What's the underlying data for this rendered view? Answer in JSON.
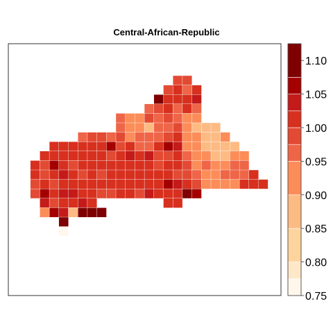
{
  "chart_data": {
    "type": "heatmap",
    "title": "Central-African-Republic",
    "legend": {
      "position": "right",
      "ticks": [
        "0.75",
        "0.80",
        "0.85",
        "0.90",
        "0.95",
        "1.00",
        "1.05",
        "1.10"
      ],
      "breaks": [
        0.75,
        0.775,
        0.8,
        0.85,
        0.9,
        0.95,
        0.975,
        1.0,
        1.025,
        1.05,
        1.075,
        1.125
      ],
      "range": [
        0.75,
        1.125
      ],
      "colors": [
        "#fff7ec",
        "#fee8c8",
        "#fdd49e",
        "#fdbb84",
        "#fc8d59",
        "#ef6548",
        "#e34a33",
        "#d7301f",
        "#c51a1a",
        "#a50000",
        "#7f0000"
      ]
    },
    "grid_rows": [
      {
        "row": 0,
        "cells": [
          [
            16,
            0.98
          ],
          [
            17,
            0.98
          ]
        ]
      },
      {
        "row": 1,
        "cells": [
          [
            15,
            0.99
          ],
          [
            16,
            1.02
          ],
          [
            17,
            0.96
          ],
          [
            18,
            1.01
          ]
        ]
      },
      {
        "row": 2,
        "cells": [
          [
            14,
            1.09
          ],
          [
            15,
            1.0
          ],
          [
            16,
            1.02
          ],
          [
            17,
            1.01
          ],
          [
            18,
            1.03
          ]
        ]
      },
      {
        "row": 3,
        "cells": [
          [
            13,
            0.97
          ],
          [
            14,
            0.99
          ],
          [
            15,
            1.0
          ],
          [
            16,
            0.97
          ],
          [
            17,
            1.01
          ],
          [
            18,
            0.97
          ]
        ]
      },
      {
        "row": 4,
        "cells": [
          [
            10,
            0.96
          ],
          [
            11,
            0.93
          ],
          [
            12,
            0.94
          ],
          [
            13,
            0.98
          ],
          [
            14,
            0.97
          ],
          [
            15,
            0.98
          ],
          [
            16,
            0.96
          ],
          [
            17,
            0.91
          ],
          [
            18,
            0.91
          ]
        ]
      },
      {
        "row": 5,
        "cells": [
          [
            10,
            0.97
          ],
          [
            11,
            0.93
          ],
          [
            12,
            0.92
          ],
          [
            13,
            0.89
          ],
          [
            14,
            0.95
          ],
          [
            15,
            0.97
          ],
          [
            16,
            0.98
          ],
          [
            17,
            0.9
          ],
          [
            18,
            0.89
          ],
          [
            19,
            0.88
          ],
          [
            20,
            0.89
          ]
        ]
      },
      {
        "row": 6,
        "cells": [
          [
            6,
            0.96
          ],
          [
            7,
            0.98
          ],
          [
            8,
            0.99
          ],
          [
            9,
            0.97
          ],
          [
            10,
            0.99
          ],
          [
            11,
            0.94
          ],
          [
            12,
            0.95
          ],
          [
            13,
            0.97
          ],
          [
            14,
            0.96
          ],
          [
            15,
            0.98
          ],
          [
            16,
            1.0
          ],
          [
            17,
            0.92
          ],
          [
            18,
            0.9
          ],
          [
            19,
            0.88
          ],
          [
            20,
            0.88
          ],
          [
            21,
            0.91
          ]
        ]
      },
      {
        "row": 7,
        "cells": [
          [
            3,
            1.0
          ],
          [
            4,
            1.0
          ],
          [
            5,
            1.0
          ],
          [
            6,
            1.01
          ],
          [
            7,
            1.0
          ],
          [
            8,
            1.0
          ],
          [
            9,
            1.07
          ],
          [
            10,
            0.99
          ],
          [
            11,
            1.01
          ],
          [
            12,
            0.96
          ],
          [
            13,
            0.97
          ],
          [
            14,
            1.0
          ],
          [
            15,
            1.05
          ],
          [
            16,
            1.04
          ],
          [
            17,
            0.94
          ],
          [
            18,
            0.92
          ],
          [
            19,
            0.89
          ],
          [
            20,
            0.89
          ],
          [
            21,
            0.88
          ],
          [
            22,
            0.88
          ]
        ]
      },
      {
        "row": 8,
        "cells": [
          [
            2,
            1.0
          ],
          [
            3,
            1.02
          ],
          [
            4,
            1.0
          ],
          [
            5,
            1.0
          ],
          [
            6,
            1.02
          ],
          [
            7,
            1.0
          ],
          [
            8,
            1.0
          ],
          [
            9,
            0.98
          ],
          [
            10,
            1.0
          ],
          [
            11,
            1.04
          ],
          [
            12,
            1.0
          ],
          [
            13,
            1.04
          ],
          [
            14,
            0.99
          ],
          [
            15,
            0.98
          ],
          [
            16,
            1.02
          ],
          [
            17,
            0.95
          ],
          [
            18,
            0.93
          ],
          [
            19,
            0.91
          ],
          [
            20,
            0.87
          ],
          [
            21,
            0.89
          ],
          [
            22,
            0.9
          ],
          [
            23,
            0.94
          ]
        ]
      },
      {
        "row": 9,
        "cells": [
          [
            1,
            1.01
          ],
          [
            2,
            0.99
          ],
          [
            3,
            1.06
          ],
          [
            4,
            1.0
          ],
          [
            5,
            0.99
          ],
          [
            6,
            1.0
          ],
          [
            7,
            1.0
          ],
          [
            8,
            1.0
          ],
          [
            9,
            1.0
          ],
          [
            10,
            1.0
          ],
          [
            11,
            1.0
          ],
          [
            12,
            1.0
          ],
          [
            13,
            1.02
          ],
          [
            14,
            0.98
          ],
          [
            15,
            1.0
          ],
          [
            16,
            1.0
          ],
          [
            17,
            0.99
          ],
          [
            18,
            0.94
          ],
          [
            19,
            0.95
          ],
          [
            20,
            0.93
          ],
          [
            21,
            0.93
          ],
          [
            22,
            0.96
          ],
          [
            23,
            0.95
          ]
        ]
      },
      {
        "row": 10,
        "cells": [
          [
            1,
            1.0
          ],
          [
            2,
            0.98
          ],
          [
            3,
            1.0
          ],
          [
            4,
            1.03
          ],
          [
            5,
            1.0
          ],
          [
            6,
            0.99
          ],
          [
            7,
            1.0
          ],
          [
            8,
            0.99
          ],
          [
            9,
            1.0
          ],
          [
            10,
            1.0
          ],
          [
            11,
            1.0
          ],
          [
            12,
            1.0
          ],
          [
            13,
            1.0
          ],
          [
            14,
            1.0
          ],
          [
            15,
            1.0
          ],
          [
            16,
            0.99
          ],
          [
            17,
            0.98
          ],
          [
            18,
            0.96
          ],
          [
            19,
            0.93
          ],
          [
            20,
            0.93
          ],
          [
            21,
            0.96
          ],
          [
            22,
            0.95
          ],
          [
            23,
            0.97
          ],
          [
            24,
            1.02
          ]
        ]
      },
      {
        "row": 11,
        "cells": [
          [
            1,
            0.99
          ],
          [
            2,
            1.0
          ],
          [
            3,
            0.99
          ],
          [
            4,
            1.0
          ],
          [
            5,
            1.0
          ],
          [
            6,
            1.0
          ],
          [
            7,
            1.0
          ],
          [
            8,
            1.0
          ],
          [
            9,
            1.0
          ],
          [
            10,
            1.0
          ],
          [
            11,
            1.0
          ],
          [
            12,
            1.0
          ],
          [
            13,
            1.0
          ],
          [
            14,
            1.01
          ],
          [
            15,
            1.05
          ],
          [
            16,
            1.03
          ],
          [
            17,
            1.01
          ],
          [
            18,
            0.99
          ],
          [
            19,
            0.94
          ],
          [
            20,
            0.94
          ],
          [
            21,
            0.94
          ],
          [
            22,
            0.94
          ],
          [
            23,
            1.02
          ],
          [
            24,
            1.0
          ],
          [
            25,
            1.01
          ]
        ]
      },
      {
        "row": 12,
        "cells": [
          [
            1,
            0.99
          ],
          [
            2,
            1.05
          ],
          [
            3,
            1.0
          ],
          [
            4,
            1.03
          ],
          [
            5,
            1.04
          ],
          [
            6,
            1.0
          ],
          [
            7,
            1.0
          ],
          [
            8,
            0.99
          ],
          [
            9,
            0.99
          ],
          [
            10,
            1.0
          ],
          [
            11,
            1.0
          ],
          [
            12,
            0.99
          ],
          [
            13,
            1.04
          ],
          [
            14,
            1.01
          ],
          [
            15,
            1.01
          ],
          [
            16,
            1.0
          ],
          [
            17,
            1.1
          ],
          [
            18,
            1.05
          ]
        ]
      },
      {
        "row": 13,
        "cells": [
          [
            2,
            1.03
          ],
          [
            3,
            0.99
          ],
          [
            4,
            1.02
          ],
          [
            5,
            1.0
          ],
          [
            6,
            1.03
          ],
          [
            7,
            1.02
          ],
          [
            15,
            1.0
          ],
          [
            16,
            1.01
          ]
        ]
      },
      {
        "row": 14,
        "cells": [
          [
            2,
            0.93
          ],
          [
            3,
            1.05
          ],
          [
            4,
            1.03
          ],
          [
            5,
            0.89
          ],
          [
            6,
            1.1
          ],
          [
            7,
            1.1
          ],
          [
            8,
            1.09
          ]
        ]
      },
      {
        "row": 15,
        "cells": [
          [
            4,
            1.1
          ]
        ]
      },
      {
        "row": 16,
        "cells": [
          [
            4,
            0.76
          ]
        ]
      }
    ]
  }
}
